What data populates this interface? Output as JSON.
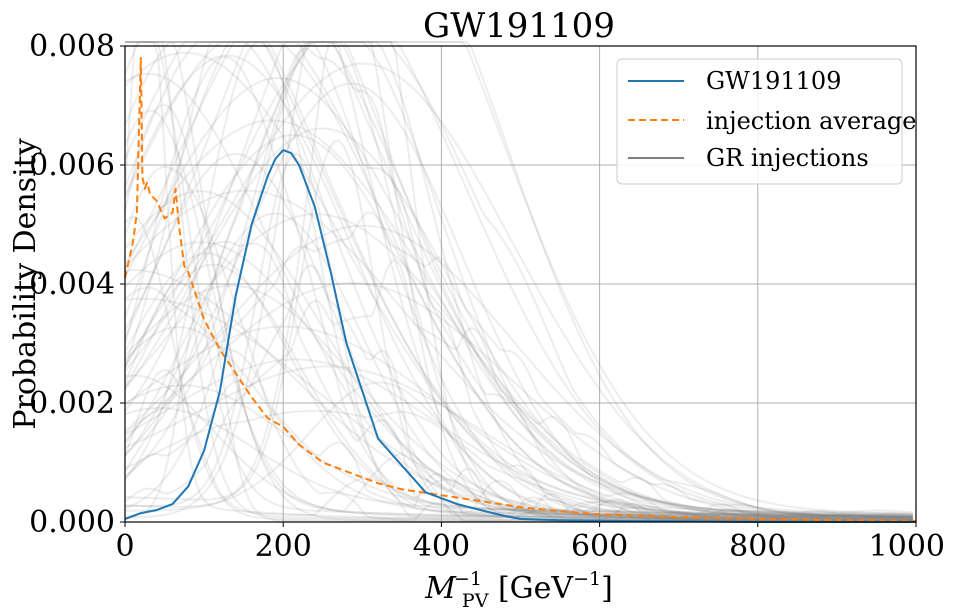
{
  "chart_data": {
    "type": "line",
    "title": "GW191109",
    "xlabel": {
      "base": "M",
      "sub": "PV",
      "sup": "−1",
      "unit_open": " [GeV",
      "unit_sup": "−1",
      "unit_close": "]"
    },
    "ylabel": "Probability Density",
    "xlim": [
      0,
      1000
    ],
    "ylim": [
      0,
      0.008
    ],
    "xticks": [
      0,
      200,
      400,
      600,
      800,
      1000
    ],
    "xtick_labels": [
      "0",
      "200",
      "400",
      "600",
      "800",
      "1000"
    ],
    "yticks": [
      0,
      0.002,
      0.004,
      0.006,
      0.008
    ],
    "ytick_labels": [
      "0.000",
      "0.002",
      "0.004",
      "0.006",
      "0.008"
    ],
    "grid": true,
    "legend_position": "top-right",
    "series": [
      {
        "name": "GW191109",
        "color": "#1f77b4",
        "style": "solid",
        "x": [
          0,
          20,
          40,
          60,
          80,
          100,
          120,
          140,
          160,
          180,
          190,
          200,
          210,
          220,
          240,
          260,
          280,
          300,
          320,
          340,
          360,
          380,
          400,
          420,
          450,
          480,
          500,
          550,
          600,
          700,
          800,
          1000
        ],
        "y": [
          5e-05,
          0.00015,
          0.0002,
          0.0003,
          0.0006,
          0.0012,
          0.0022,
          0.0038,
          0.005,
          0.0058,
          0.0061,
          0.00625,
          0.0062,
          0.006,
          0.0053,
          0.0042,
          0.003,
          0.0022,
          0.0014,
          0.0011,
          0.0008,
          0.0005,
          0.0004,
          0.0003,
          0.0002,
          0.0001,
          5e-05,
          3e-05,
          2e-05,
          1e-05,
          0.0,
          0.0
        ]
      },
      {
        "name": "injection average",
        "color": "#ff7f0e",
        "style": "dashed",
        "x": [
          0,
          10,
          15,
          20,
          22,
          25,
          28,
          32,
          40,
          50,
          60,
          64,
          68,
          75,
          80,
          90,
          100,
          120,
          140,
          160,
          180,
          200,
          220,
          250,
          280,
          300,
          320,
          350,
          400,
          450,
          500,
          550,
          600,
          700,
          800,
          900,
          1000
        ],
        "y": [
          0.0041,
          0.0047,
          0.0052,
          0.0078,
          0.0058,
          0.0056,
          0.0057,
          0.0055,
          0.0054,
          0.0051,
          0.0052,
          0.0056,
          0.005,
          0.0043,
          0.0042,
          0.0038,
          0.0034,
          0.0029,
          0.0025,
          0.0021,
          0.00175,
          0.0016,
          0.0013,
          0.001,
          0.00085,
          0.00075,
          0.00065,
          0.00055,
          0.00045,
          0.00035,
          0.00025,
          0.00018,
          0.00013,
          8e-05,
          5e-05,
          3e-05,
          2e-05
        ]
      },
      {
        "name": "GR injections",
        "color": "#7f7f7f",
        "style": "solid"
      }
    ]
  }
}
